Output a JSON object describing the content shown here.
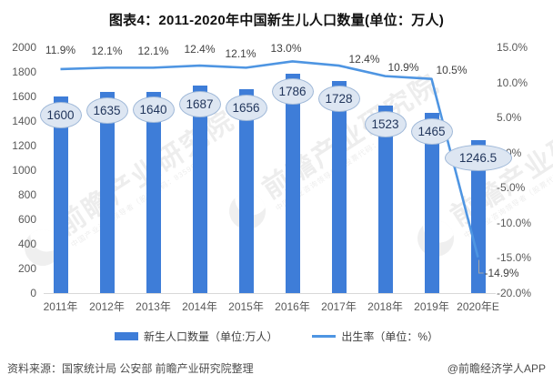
{
  "title": "图表4：2011-2020年中国新生儿人口数量(单位：万人)",
  "chart_data": {
    "type": "bar",
    "title": "图表4：2011-2020年中国新生儿人口数量(单位：万人)",
    "categories": [
      "2011年",
      "2012年",
      "2013年",
      "2014年",
      "2015年",
      "2016年",
      "2017年",
      "2018年",
      "2019年",
      "2020年E"
    ],
    "series": [
      {
        "name": "新生人口数量（单位:万人）",
        "type": "bar",
        "axis": "left",
        "values": [
          1600,
          1635,
          1640,
          1687,
          1656,
          1786,
          1728,
          1523,
          1465,
          1246.5
        ],
        "value_labels": [
          "1600",
          "1635",
          "1640",
          "1687",
          "1656",
          "1786",
          "1728",
          "1523",
          "1465",
          "1246.5"
        ],
        "color": "#3E7DD8"
      },
      {
        "name": "出生率（单位：%）",
        "type": "line",
        "axis": "right",
        "values": [
          11.9,
          12.1,
          12.1,
          12.4,
          12.1,
          13.0,
          12.4,
          10.9,
          10.5,
          -14.9
        ],
        "value_labels": [
          "11.9%",
          "12.1%",
          "12.1%",
          "12.4%",
          "12.1%",
          "13.0%",
          "12.4%",
          "10.9%",
          "10.5%",
          "-14.9%"
        ],
        "color": "#4E95E2"
      }
    ],
    "left_axis": {
      "min": 0,
      "max": 2000,
      "step": 200,
      "tick_labels": [
        "2000",
        "1800",
        "1600",
        "1400",
        "1200",
        "1000",
        "800",
        "600",
        "400",
        "200",
        "0"
      ]
    },
    "right_axis": {
      "min": -20,
      "max": 15,
      "step": 5,
      "tick_labels": [
        "15.0%",
        "10.0%",
        "5.0%",
        "0.0%",
        "-5.0%",
        "-10.0%",
        "-15.0%",
        "-20.0%"
      ]
    },
    "grid": false,
    "legend_position": "bottom",
    "value_label_style": {
      "fill": "#DDE6F2",
      "border": "#9FB8D8",
      "text_color": "#22365C"
    }
  },
  "legend": {
    "items": [
      {
        "label": "新生人口数量（单位:万人）",
        "swatch": "bar"
      },
      {
        "label": "出生率（单位：%）",
        "swatch": "line"
      }
    ]
  },
  "watermark": {
    "text": "前瞻产业研究院",
    "subtext": "中国产业咨询领导者（股票代码：835991）",
    "icon": "qianzhan-logo-circle"
  },
  "footer": {
    "source": "资料来源：国家统计局 公安部 前瞻产业研究院整理",
    "credit": "@前瞻经济学人APP"
  }
}
